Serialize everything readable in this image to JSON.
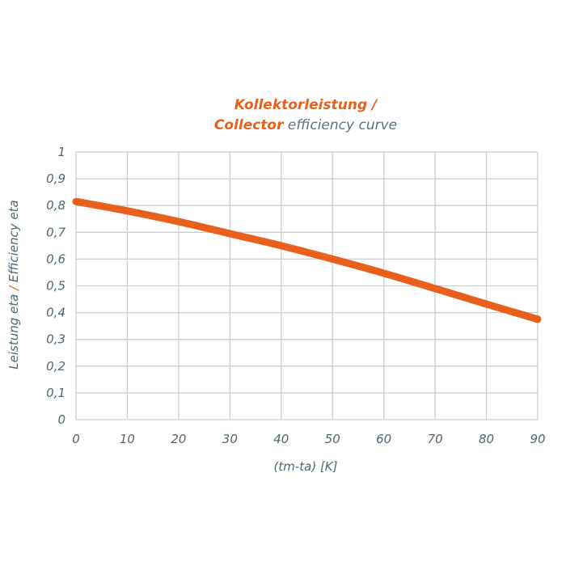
{
  "chart_data": {
    "type": "line",
    "title_line1": "Kollektorleistung /",
    "title_line2_bold": "Collector",
    "title_line2_rest": " efficiency curve",
    "xlabel": "(tm-ta) [K]",
    "ylabel_part1": "Leistung eta",
    "ylabel_sep": " / ",
    "ylabel_part2": "Efficiency eta",
    "xlim": [
      0,
      90
    ],
    "ylim": [
      0,
      1
    ],
    "x_ticks": [
      "0",
      "10",
      "20",
      "30",
      "40",
      "50",
      "60",
      "70",
      "80",
      "90"
    ],
    "y_ticks": [
      "0",
      "0,1",
      "0,2",
      "0,3",
      "0,4",
      "0,5",
      "0,6",
      "0,7",
      "0,8",
      "0,9",
      "1"
    ],
    "grid": true,
    "series": [
      {
        "color": "#e8601c",
        "x": [
          0,
          10,
          20,
          30,
          40,
          50,
          60,
          70,
          80,
          90
        ],
        "y": [
          0.815,
          0.78,
          0.74,
          0.695,
          0.65,
          0.6,
          0.547,
          0.49,
          0.432,
          0.375
        ]
      }
    ]
  }
}
